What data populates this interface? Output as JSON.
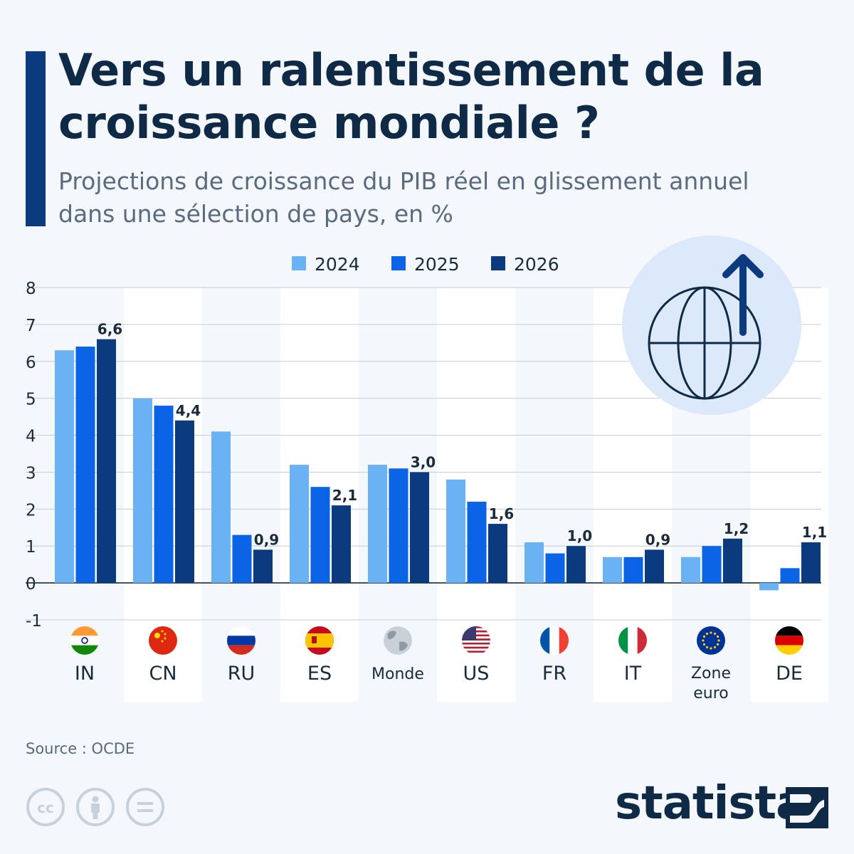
{
  "header": {
    "title_lines": [
      "Vers un ralentissement de la",
      "croissance mondiale ?"
    ],
    "subtitle_lines": [
      "Projections de croissance du PIB réel en glissement annuel",
      "dans une sélection de pays, en %"
    ]
  },
  "chart_data": {
    "type": "bar",
    "categories": [
      "IN",
      "CN",
      "RU",
      "ES",
      "Monde",
      "US",
      "FR",
      "IT",
      "Zone euro",
      "DE"
    ],
    "series": [
      {
        "name": "2024",
        "color": "#6bb2f5",
        "values": [
          6.3,
          5.0,
          4.1,
          3.2,
          3.2,
          2.8,
          1.1,
          0.7,
          0.7,
          -0.2
        ]
      },
      {
        "name": "2025",
        "color": "#0b63e5",
        "values": [
          6.4,
          4.8,
          1.3,
          2.6,
          3.1,
          2.2,
          0.8,
          0.7,
          1.0,
          0.4
        ]
      },
      {
        "name": "2026",
        "color": "#0b3a7f",
        "values": [
          6.6,
          4.4,
          0.9,
          2.1,
          3.0,
          1.6,
          1.0,
          0.9,
          1.2,
          1.1
        ]
      }
    ],
    "data_labels": [
      "6,6",
      "4,4",
      "0,9",
      "2,1",
      "3,0",
      "1,6",
      "1,0",
      "0,9",
      "1,2",
      "1,1"
    ],
    "ylim": [
      -1,
      8
    ],
    "yticks": [
      "8",
      "7",
      "6",
      "5",
      "4",
      "3",
      "2",
      "1",
      "0",
      "-1"
    ],
    "grid": true,
    "legend_position": "top",
    "flags": [
      "india-flag-icon",
      "china-flag-icon",
      "russia-flag-icon",
      "spain-flag-icon",
      "world-globe-icon",
      "usa-flag-icon",
      "france-flag-icon",
      "italy-flag-icon",
      "eu-flag-icon",
      "germany-flag-icon"
    ]
  },
  "illustration": {
    "icon": "globe-up-arrow-icon",
    "circle_color": "#dce9fb",
    "ink_color": "#0f2a47",
    "arrow_color": "#0b3a7f"
  },
  "footer": {
    "source": "Source : OCDE",
    "license_icons": [
      "creative-commons-icon",
      "attribution-icon",
      "no-derivatives-icon"
    ],
    "brand": "statista"
  }
}
